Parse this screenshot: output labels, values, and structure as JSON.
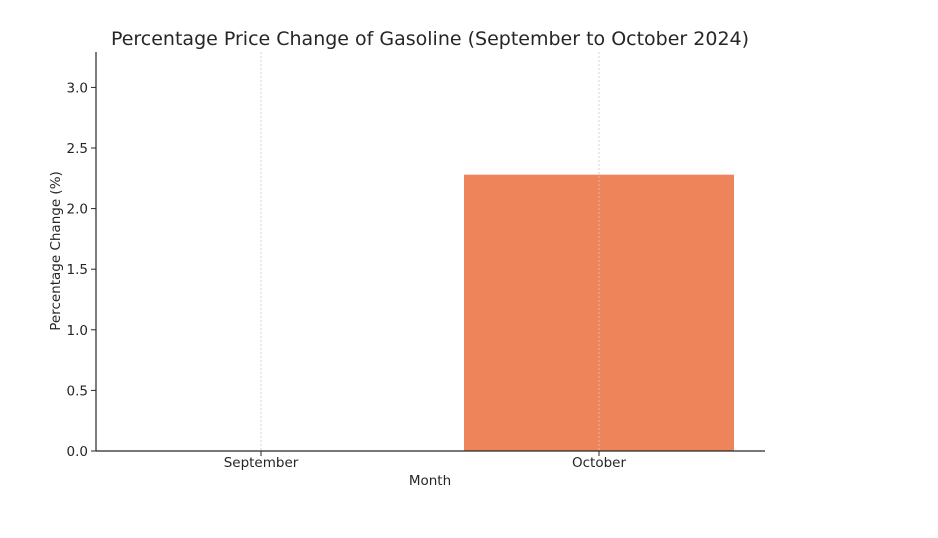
{
  "chart_data": {
    "type": "bar",
    "title": "Percentage Price Change of Gasoline (September to October 2024)",
    "xlabel": "Month",
    "ylabel": "Percentage Change (%)",
    "categories": [
      "September",
      "October"
    ],
    "values": [
      0.0,
      2.28
    ],
    "ylim": [
      0,
      3.27
    ],
    "yticks": [
      "0.0",
      "0.5",
      "1.0",
      "1.5",
      "2.0",
      "2.5",
      "3.0"
    ],
    "grid": "x-axis vertical dashed",
    "legend": "none",
    "colors": {
      "bar": "#ee855a",
      "axis": "#262626",
      "grid": "#c8c8c8"
    }
  }
}
